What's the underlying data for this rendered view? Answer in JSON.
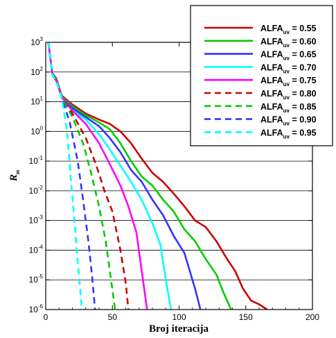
{
  "chart_data": {
    "type": "line",
    "xlabel": "Broj iteracija",
    "ylabel_main": "R",
    "ylabel_sub": "m",
    "xlim": [
      0,
      200
    ],
    "ylim_log10": [
      -6,
      3
    ],
    "y_scale": "log",
    "grid": "horizontal",
    "legend_position": "top-right",
    "x_ticks": [
      "0",
      "50",
      "100",
      "150",
      "200"
    ],
    "y_ticks": [
      {
        "base": "10",
        "exp": "3"
      },
      {
        "base": "10",
        "exp": "2"
      },
      {
        "base": "10",
        "exp": "1"
      },
      {
        "base": "10",
        "exp": "0"
      },
      {
        "base": "10",
        "exp": "-1"
      },
      {
        "base": "10",
        "exp": "-2"
      },
      {
        "base": "10",
        "exp": "-3"
      },
      {
        "base": "10",
        "exp": "-4"
      },
      {
        "base": "10",
        "exp": "-5"
      },
      {
        "base": "10",
        "exp": "-6"
      }
    ],
    "series": [
      {
        "label_main": "ALFA",
        "label_sub": "uv",
        "label_value": " = 0.55",
        "color": "#cc0000",
        "dash": "solid",
        "x": [
          2,
          5,
          8,
          12,
          20,
          30,
          40,
          48,
          56,
          64,
          72,
          80,
          88,
          96,
          104,
          112,
          120,
          128,
          136,
          142,
          148,
          154,
          160,
          166
        ],
        "y": [
          1000,
          90,
          60,
          16,
          8,
          4,
          2.5,
          1.8,
          1.0,
          0.4,
          0.12,
          0.04,
          0.02,
          0.008,
          0.003,
          0.001,
          0.0006,
          0.0002,
          5e-05,
          2e-05,
          5e-06,
          2e-06,
          1.5e-06,
          1e-06
        ]
      },
      {
        "label_main": "ALFA",
        "label_sub": "uv",
        "label_value": " = 0.60",
        "color": "#00cc00",
        "dash": "solid",
        "x": [
          2,
          5,
          8,
          12,
          20,
          30,
          40,
          48,
          56,
          64,
          72,
          80,
          88,
          96,
          104,
          112,
          120,
          128,
          133,
          139
        ],
        "y": [
          1000,
          85,
          55,
          15,
          7,
          3.5,
          2,
          1.2,
          0.4,
          0.1,
          0.03,
          0.015,
          0.005,
          0.002,
          0.0005,
          0.0002,
          5e-05,
          1.5e-05,
          4e-06,
          1e-06
        ]
      },
      {
        "label_main": "ALFA",
        "label_sub": "uv",
        "label_value": " = 0.65",
        "color": "#3333ff",
        "dash": "solid",
        "x": [
          2,
          5,
          8,
          12,
          20,
          30,
          40,
          48,
          56,
          64,
          72,
          80,
          88,
          96,
          104,
          108,
          112,
          116
        ],
        "y": [
          1000,
          80,
          50,
          14,
          6,
          3,
          1.5,
          0.6,
          0.2,
          0.05,
          0.02,
          0.005,
          0.0015,
          0.0003,
          8e-05,
          2e-05,
          5e-06,
          1e-06
        ]
      },
      {
        "label_main": "ALFA",
        "label_sub": "uv",
        "label_value": " = 0.70",
        "color": "#00ffff",
        "dash": "solid",
        "x": [
          2,
          5,
          8,
          12,
          20,
          30,
          40,
          48,
          56,
          64,
          72,
          80,
          86,
          90,
          94
        ],
        "y": [
          1000,
          80,
          50,
          14,
          5,
          2.5,
          0.8,
          0.25,
          0.07,
          0.02,
          0.005,
          0.0008,
          0.00015,
          1e-05,
          1e-06
        ]
      },
      {
        "label_main": "ALFA",
        "label_sub": "uv",
        "label_value": " = 0.75",
        "color": "#ff00ff",
        "dash": "solid",
        "x": [
          2,
          5,
          8,
          12,
          20,
          30,
          40,
          48,
          56,
          62,
          68,
          72,
          76
        ],
        "y": [
          1000,
          80,
          50,
          14,
          5,
          1.8,
          0.4,
          0.08,
          0.015,
          0.003,
          0.0004,
          2e-05,
          1e-06
        ]
      },
      {
        "label_main": "ALFA",
        "label_sub": "uv",
        "label_value": " = 0.80",
        "color": "#cc0000",
        "dash": "dashed",
        "x": [
          2,
          5,
          8,
          12,
          20,
          30,
          38,
          44,
          50,
          56,
          60,
          62
        ],
        "y": [
          1000,
          80,
          50,
          14,
          4,
          0.6,
          0.07,
          0.01,
          0.002,
          0.0001,
          8e-06,
          1e-06
        ]
      },
      {
        "label_main": "ALFA",
        "label_sub": "uv",
        "label_value": " = 0.85",
        "color": "#00cc00",
        "dash": "dashed",
        "x": [
          2,
          5,
          8,
          12,
          20,
          28,
          34,
          40,
          45,
          49,
          52
        ],
        "y": [
          1000,
          80,
          50,
          14,
          3,
          0.4,
          0.04,
          0.003,
          0.0002,
          1e-05,
          1e-06
        ]
      },
      {
        "label_main": "ALFA",
        "label_sub": "uv",
        "label_value": " = 0.90",
        "color": "#3333ff",
        "dash": "dashed",
        "x": [
          2,
          5,
          8,
          12,
          18,
          24,
          28,
          32,
          35,
          37
        ],
        "y": [
          1000,
          80,
          50,
          14,
          2,
          0.1,
          0.005,
          0.0002,
          1e-05,
          1e-06
        ]
      },
      {
        "label_main": "ALFA",
        "label_sub": "uv",
        "label_value": " = 0.95",
        "color": "#00ffff",
        "dash": "dashed",
        "x": [
          2,
          5,
          8,
          12,
          16,
          19,
          22,
          24,
          26,
          27
        ],
        "y": [
          1000,
          80,
          50,
          14,
          1,
          0.02,
          0.0006,
          4e-05,
          4e-06,
          1e-06
        ]
      }
    ]
  }
}
